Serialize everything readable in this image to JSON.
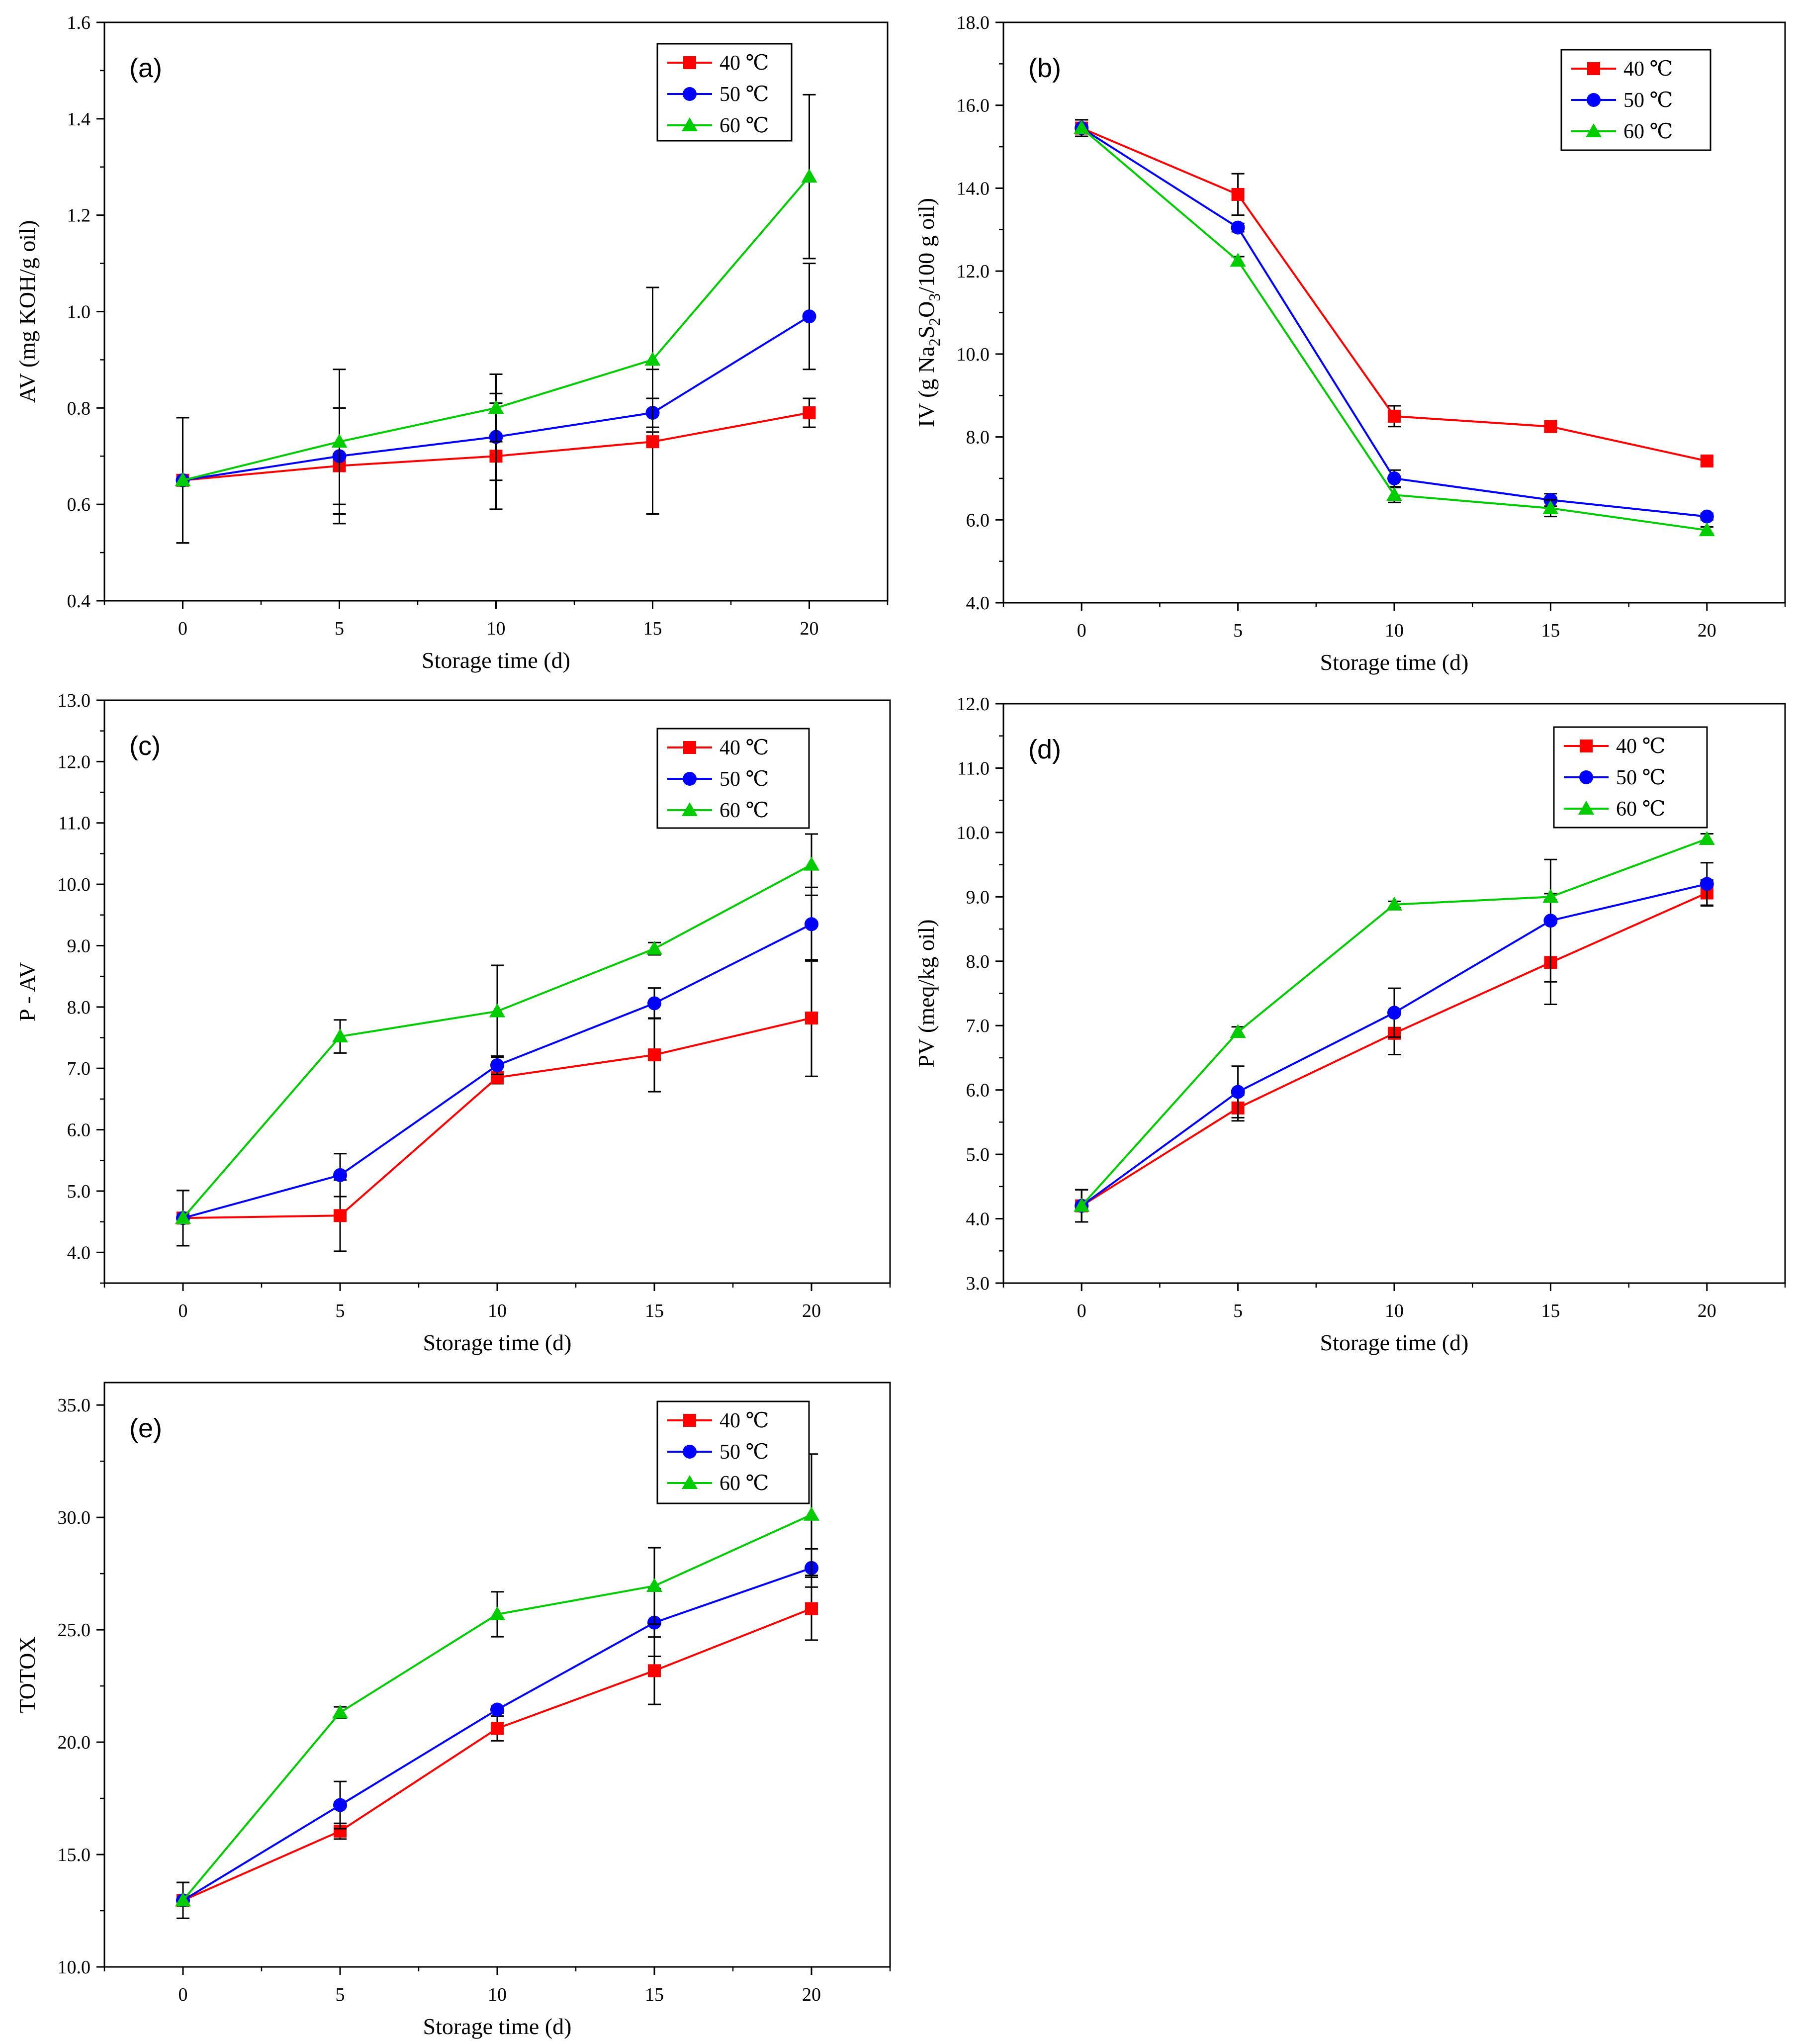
{
  "chart_data": [
    {
      "type": "line",
      "panel_label": "(a)",
      "xlabel": "Storage time (d)",
      "ylabel": "AV (mg KOH/g oil)",
      "x": [
        0,
        5,
        10,
        15,
        20
      ],
      "xticks": [
        "0",
        "5",
        "10",
        "15",
        "20"
      ],
      "ylim": [
        0.4,
        1.6
      ],
      "yticks": [
        "0.4",
        "0.6",
        "0.8",
        "1.0",
        "1.2",
        "1.4",
        "1.6"
      ],
      "legend_position": "top-right",
      "series": [
        {
          "name": "40 ℃",
          "color": "#ff0000",
          "marker": "square",
          "values": [
            0.65,
            0.68,
            0.7,
            0.73,
            0.79
          ],
          "errors": [
            0.13,
            0.12,
            0.11,
            0.15,
            0.03
          ]
        },
        {
          "name": "50 ℃",
          "color": "#0000ff",
          "marker": "circle",
          "values": [
            0.65,
            0.7,
            0.74,
            0.79,
            0.99
          ],
          "errors": [
            0.13,
            0.1,
            0.09,
            0.03,
            0.11
          ]
        },
        {
          "name": "60 ℃",
          "color": "#00cc00",
          "marker": "triangle",
          "values": [
            0.65,
            0.73,
            0.8,
            0.9,
            1.28
          ],
          "errors": [
            0.13,
            0.15,
            0.07,
            0.15,
            0.17
          ]
        }
      ]
    },
    {
      "type": "line",
      "panel_label": "(b)",
      "xlabel": "Storage time (d)",
      "ylabel": "IV (g Na2S2O3/100 g oil)",
      "ylabel_parts": {
        "pre": "IV (g Na",
        "s1": "2",
        "mid1": "S",
        "s2": "2",
        "mid2": "O",
        "s3": "3",
        "post": "/100 g oil)"
      },
      "x": [
        0,
        5,
        10,
        15,
        20
      ],
      "xticks": [
        "0",
        "5",
        "10",
        "15",
        "20"
      ],
      "ylim": [
        4.0,
        18.0
      ],
      "yticks": [
        "4.0",
        "6.0",
        "8.0",
        "10.0",
        "12.0",
        "14.0",
        "16.0",
        "18.0"
      ],
      "legend_position": "top-right",
      "series": [
        {
          "name": "40 ℃",
          "color": "#ff0000",
          "marker": "square",
          "values": [
            15.45,
            13.85,
            8.5,
            8.25,
            7.42
          ],
          "errors": [
            0.2,
            0.5,
            0.25,
            0.12,
            0.1
          ]
        },
        {
          "name": "50 ℃",
          "color": "#0000ff",
          "marker": "circle",
          "values": [
            15.45,
            13.05,
            7.0,
            6.48,
            6.08
          ],
          "errors": [
            0.2,
            0.1,
            0.2,
            0.15,
            0.08
          ]
        },
        {
          "name": "60 ℃",
          "color": "#00cc00",
          "marker": "triangle",
          "values": [
            15.45,
            12.25,
            6.6,
            6.28,
            5.75
          ],
          "errors": [
            0.2,
            0.1,
            0.18,
            0.2,
            0.08
          ]
        }
      ]
    },
    {
      "type": "line",
      "panel_label": "(c)",
      "xlabel": "Storage time (d)",
      "ylabel": "P - AV",
      "x": [
        0,
        5,
        10,
        15,
        20
      ],
      "xticks": [
        "0",
        "5",
        "10",
        "15",
        "20"
      ],
      "ylim": [
        3.5,
        13.0
      ],
      "yticks": [
        "4.0",
        "5.0",
        "6.0",
        "7.0",
        "8.0",
        "9.0",
        "10.0",
        "11.0",
        "12.0",
        "13.0"
      ],
      "legend_position": "top-right",
      "series": [
        {
          "name": "40 ℃",
          "color": "#ff0000",
          "marker": "square",
          "values": [
            4.56,
            4.6,
            6.85,
            7.22,
            7.82
          ],
          "errors": [
            0.45,
            0.58,
            0.1,
            0.6,
            0.95
          ]
        },
        {
          "name": "50 ℃",
          "color": "#0000ff",
          "marker": "circle",
          "values": [
            4.56,
            5.26,
            7.05,
            8.06,
            9.35
          ],
          "errors": [
            0.45,
            0.35,
            0.15,
            0.25,
            0.6
          ]
        },
        {
          "name": "60 ℃",
          "color": "#00cc00",
          "marker": "triangle",
          "values": [
            4.56,
            7.52,
            7.93,
            8.95,
            10.32
          ],
          "errors": [
            0.45,
            0.27,
            0.75,
            0.1,
            0.5
          ]
        }
      ]
    },
    {
      "type": "line",
      "panel_label": "(d)",
      "xlabel": "Storage time (d)",
      "ylabel": "PV (meq/kg oil)",
      "x": [
        0,
        5,
        10,
        15,
        20
      ],
      "xticks": [
        "0",
        "5",
        "10",
        "15",
        "20"
      ],
      "ylim": [
        3.0,
        12.0
      ],
      "yticks": [
        "3.0",
        "4.0",
        "5.0",
        "6.0",
        "7.0",
        "8.0",
        "9.0",
        "10.0",
        "11.0",
        "12.0"
      ],
      "legend_position": "top-right",
      "series": [
        {
          "name": "40 ℃",
          "color": "#ff0000",
          "marker": "square",
          "values": [
            4.2,
            5.72,
            6.88,
            7.98,
            9.06
          ],
          "errors": [
            0.25,
            0.2,
            0.33,
            0.65,
            0.2
          ]
        },
        {
          "name": "50 ℃",
          "color": "#0000ff",
          "marker": "circle",
          "values": [
            4.2,
            5.97,
            7.2,
            8.63,
            9.2
          ],
          "errors": [
            0.25,
            0.4,
            0.38,
            0.95,
            0.33
          ]
        },
        {
          "name": "60 ℃",
          "color": "#00cc00",
          "marker": "triangle",
          "values": [
            4.2,
            6.9,
            8.88,
            9.0,
            9.9
          ],
          "errors": [
            0.25,
            0.08,
            0.05,
            0.05,
            0.08
          ]
        }
      ]
    },
    {
      "type": "line",
      "panel_label": "(e)",
      "xlabel": "Storage time (d)",
      "ylabel": "TOTOX",
      "x": [
        0,
        5,
        10,
        15,
        20
      ],
      "xticks": [
        "0",
        "5",
        "10",
        "15",
        "20"
      ],
      "ylim": [
        10.0,
        36.0
      ],
      "yticks": [
        "10.0",
        "15.0",
        "20.0",
        "25.0",
        "30.0",
        "35.0"
      ],
      "legend_position": "top-right",
      "series": [
        {
          "name": "40 ℃",
          "color": "#ff0000",
          "marker": "square",
          "values": [
            12.96,
            16.04,
            20.61,
            23.18,
            25.94
          ],
          "errors": [
            0.8,
            0.35,
            0.55,
            1.5,
            1.4
          ]
        },
        {
          "name": "50 ℃",
          "color": "#0000ff",
          "marker": "circle",
          "values": [
            12.96,
            17.2,
            21.45,
            25.32,
            27.75
          ],
          "errors": [
            0.8,
            1.05,
            0.15,
            1.5,
            0.85
          ]
        },
        {
          "name": "60 ℃",
          "color": "#00cc00",
          "marker": "triangle",
          "values": [
            12.96,
            21.32,
            25.69,
            26.95,
            30.12
          ],
          "errors": [
            0.8,
            0.25,
            1.0,
            1.7,
            2.7
          ]
        }
      ]
    }
  ]
}
